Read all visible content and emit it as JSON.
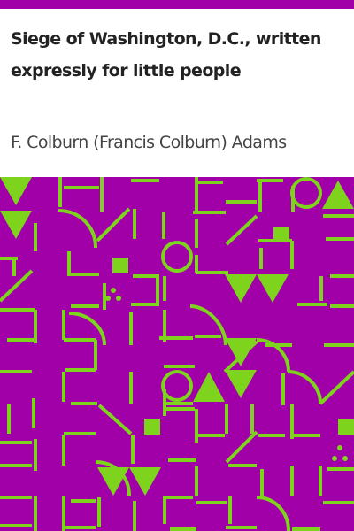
{
  "book": {
    "title": "Siege of Washington, D.C., written expressly for little people",
    "author": "F. Colburn (Francis Colburn) Adams"
  },
  "colors": {
    "accent": "#a100a9",
    "pattern_background": "#a100a9",
    "pattern_lines": "#7ed41c",
    "title_text": "#222222",
    "author_text": "#444444",
    "page_background": "#ffffff"
  },
  "decoration": {
    "pattern_style": "geometric-maze-with-triangles-circles-squares-and-dots"
  }
}
